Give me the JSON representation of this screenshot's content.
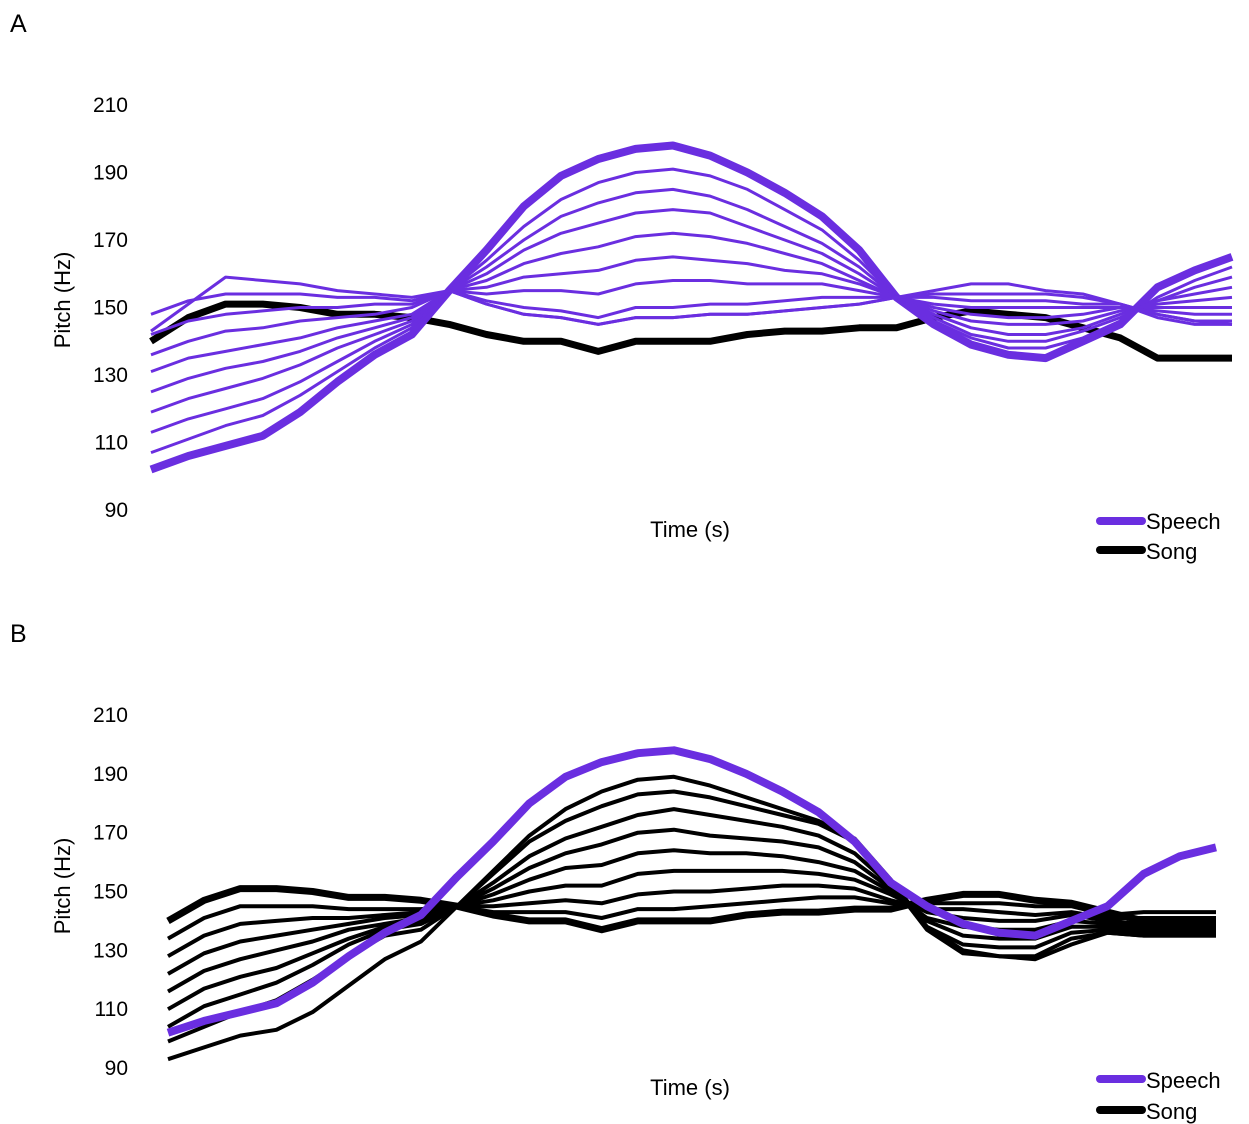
{
  "colors": {
    "speech": "#6a2ee0",
    "song": "#000000"
  },
  "chart_data": [
    {
      "type": "line",
      "panel": "A",
      "xlabel": "Time (s)",
      "ylabel": "Pitch (Hz)",
      "ylim": [
        90,
        210
      ],
      "yticks": [
        90,
        110,
        130,
        150,
        170,
        190,
        210
      ],
      "legend": [
        "Speech",
        "Song"
      ],
      "legend_position": "bottom-right",
      "x": [
        0,
        1,
        2,
        3,
        4,
        5,
        6,
        7,
        8,
        9,
        10,
        11,
        12,
        13,
        14,
        15,
        16,
        17,
        18,
        19,
        20,
        21,
        22,
        23,
        24,
        25,
        26,
        27,
        28,
        29
      ],
      "series": [
        {
          "name": "Song",
          "color": "#000000",
          "width": 7,
          "values": [
            140,
            147,
            151,
            151,
            150,
            148,
            148,
            147,
            145,
            142,
            140,
            140,
            137,
            140,
            140,
            140,
            142,
            143,
            143,
            144,
            144,
            147,
            149,
            148,
            147,
            144,
            141,
            135,
            135,
            135
          ]
        },
        {
          "name": "Speech",
          "color": "#6a2ee0",
          "width": 8,
          "values": [
            102,
            106,
            109,
            112,
            119,
            128,
            136,
            142,
            155,
            167,
            180,
            189,
            194,
            197,
            198,
            195,
            190,
            184,
            177,
            167,
            153,
            145,
            139,
            136,
            135,
            140,
            145,
            156,
            161,
            165
          ]
        },
        {
          "color": "#6a2ee0",
          "width": 3,
          "values": [
            107,
            111,
            115,
            118,
            124,
            131,
            138,
            144,
            155,
            164,
            174,
            182,
            187,
            190,
            191,
            189,
            185,
            179,
            173,
            164,
            153,
            146,
            141,
            138,
            138,
            141,
            146,
            153,
            158,
            162
          ]
        },
        {
          "color": "#6a2ee0",
          "width": 3,
          "values": [
            113,
            117,
            120,
            123,
            128,
            134,
            140,
            145,
            155,
            162,
            170,
            177,
            181,
            184,
            185,
            183,
            179,
            174,
            169,
            162,
            153,
            147,
            142,
            140,
            140,
            143,
            147,
            152,
            156,
            159
          ]
        },
        {
          "color": "#6a2ee0",
          "width": 3,
          "values": [
            119,
            123,
            126,
            129,
            133,
            138,
            142,
            146,
            155,
            160,
            167,
            172,
            175,
            178,
            179,
            178,
            174,
            170,
            166,
            160,
            153,
            148,
            144,
            142,
            142,
            144,
            148,
            152,
            154,
            156
          ]
        },
        {
          "color": "#6a2ee0",
          "width": 3,
          "values": [
            125,
            129,
            132,
            134,
            137,
            141,
            144,
            147,
            155,
            158,
            163,
            166,
            168,
            171,
            172,
            171,
            169,
            166,
            163,
            158,
            153,
            149,
            146,
            145,
            145,
            146,
            149,
            151,
            152,
            153
          ]
        },
        {
          "color": "#6a2ee0",
          "width": 3,
          "values": [
            131,
            135,
            137,
            139,
            141,
            144,
            146,
            148,
            155,
            156,
            159,
            160,
            161,
            164,
            165,
            164,
            163,
            161,
            160,
            157,
            153,
            150,
            148,
            147,
            147,
            148,
            150,
            150,
            150,
            150
          ]
        },
        {
          "color": "#6a2ee0",
          "width": 3,
          "values": [
            136,
            140,
            143,
            144,
            146,
            147,
            148,
            150,
            155,
            154,
            155,
            155,
            154,
            157,
            158,
            158,
            157,
            157,
            157,
            155,
            153,
            151,
            150,
            150,
            150,
            150,
            150,
            149,
            148,
            148
          ]
        },
        {
          "color": "#6a2ee0",
          "width": 3,
          "values": [
            142,
            146,
            148,
            149,
            150,
            150,
            151,
            151,
            155,
            152,
            150,
            149,
            147,
            150,
            150,
            151,
            151,
            152,
            153,
            153,
            153,
            153,
            152,
            152,
            152,
            151,
            151,
            148,
            146,
            146
          ]
        },
        {
          "color": "#6a2ee0",
          "width": 3,
          "values": [
            148,
            152,
            154,
            154,
            154,
            153,
            153,
            152,
            155,
            151,
            148,
            147,
            145,
            147,
            147,
            148,
            148,
            149,
            150,
            151,
            153,
            154,
            154,
            154,
            154,
            153,
            151,
            147,
            145,
            145
          ]
        },
        {
          "color": "#6a2ee0",
          "width": 3,
          "values": [
            143,
            151,
            159,
            158,
            157,
            155,
            154,
            153,
            155,
            151,
            148,
            147,
            145,
            147,
            147,
            148,
            148,
            149,
            150,
            151,
            153,
            155,
            157,
            157,
            155,
            154,
            151,
            148,
            146,
            145
          ]
        }
      ]
    },
    {
      "type": "line",
      "panel": "B",
      "xlabel": "Time (s)",
      "ylabel": "Pitch (Hz)",
      "ylim": [
        90,
        210
      ],
      "yticks": [
        90,
        110,
        130,
        150,
        170,
        190,
        210
      ],
      "legend": [
        "Speech",
        "Song"
      ],
      "legend_position": "bottom-right",
      "x": [
        0,
        1,
        2,
        3,
        4,
        5,
        6,
        7,
        8,
        9,
        10,
        11,
        12,
        13,
        14,
        15,
        16,
        17,
        18,
        19,
        20,
        21,
        22,
        23,
        24,
        25,
        26,
        27,
        28,
        29
      ],
      "series": [
        {
          "name": "Song",
          "color": "#000000",
          "width": 7,
          "values": [
            140,
            147,
            151,
            151,
            150,
            148,
            148,
            147,
            145,
            142,
            140,
            140,
            137,
            140,
            140,
            140,
            142,
            143,
            143,
            144,
            144,
            147,
            149,
            149,
            147,
            146,
            143,
            140,
            140,
            140
          ]
        },
        {
          "color": "#000000",
          "width": 4,
          "values": [
            134,
            141,
            145,
            145,
            145,
            144,
            144,
            144,
            145,
            143,
            143,
            143,
            141,
            144,
            144,
            145,
            146,
            147,
            148,
            148,
            146,
            146,
            146,
            146,
            145,
            145,
            142,
            143,
            143,
            143
          ]
        },
        {
          "color": "#000000",
          "width": 4,
          "values": [
            128,
            135,
            139,
            140,
            141,
            141,
            142,
            143,
            145,
            145,
            146,
            147,
            146,
            149,
            150,
            150,
            151,
            152,
            152,
            151,
            147,
            144,
            144,
            143,
            142,
            143,
            141,
            141,
            141,
            141
          ]
        },
        {
          "color": "#000000",
          "width": 4,
          "values": [
            122,
            129,
            133,
            135,
            137,
            139,
            141,
            142,
            145,
            147,
            150,
            152,
            152,
            156,
            157,
            157,
            157,
            157,
            156,
            154,
            149,
            143,
            141,
            140,
            140,
            142,
            140,
            139,
            139,
            139
          ]
        },
        {
          "color": "#000000",
          "width": 4,
          "values": [
            116,
            123,
            127,
            130,
            133,
            137,
            139,
            141,
            145,
            149,
            154,
            158,
            159,
            163,
            164,
            163,
            163,
            162,
            160,
            157,
            150,
            141,
            138,
            137,
            137,
            140,
            139,
            138,
            138,
            138
          ]
        },
        {
          "color": "#000000",
          "width": 4,
          "values": [
            110,
            117,
            121,
            124,
            129,
            134,
            138,
            140,
            145,
            151,
            158,
            163,
            166,
            170,
            171,
            169,
            168,
            167,
            165,
            160,
            151,
            140,
            135,
            134,
            134,
            138,
            138,
            137,
            137,
            137
          ]
        },
        {
          "color": "#000000",
          "width": 4,
          "values": [
            104,
            111,
            115,
            119,
            125,
            132,
            137,
            139,
            145,
            153,
            162,
            168,
            172,
            176,
            178,
            176,
            174,
            172,
            169,
            163,
            152,
            138,
            132,
            131,
            131,
            136,
            137,
            136,
            136,
            136
          ]
        },
        {
          "color": "#000000",
          "width": 4,
          "values": [
            99,
            104,
            109,
            113,
            120,
            128,
            135,
            137,
            145,
            156,
            167,
            174,
            179,
            183,
            184,
            182,
            179,
            176,
            173,
            167,
            153,
            137,
            129,
            128,
            128,
            134,
            136,
            135,
            135,
            135
          ]
        },
        {
          "color": "#000000",
          "width": 4,
          "values": [
            93,
            97,
            101,
            103,
            109,
            118,
            127,
            133,
            145,
            157,
            169,
            178,
            184,
            188,
            189,
            186,
            182,
            178,
            174,
            168,
            154,
            138,
            130,
            128,
            127,
            132,
            136,
            135,
            135,
            135
          ]
        },
        {
          "name": "Speech",
          "color": "#6a2ee0",
          "width": 8,
          "values": [
            102,
            106,
            109,
            112,
            119,
            128,
            136,
            142,
            155,
            167,
            180,
            189,
            194,
            197,
            198,
            195,
            190,
            184,
            177,
            167,
            153,
            145,
            139,
            136,
            135,
            140,
            145,
            156,
            162,
            165
          ]
        }
      ]
    }
  ]
}
